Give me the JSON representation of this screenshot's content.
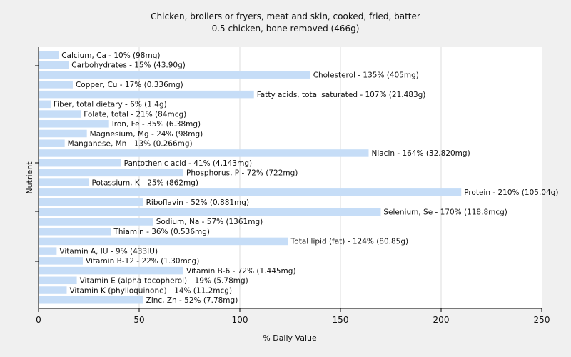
{
  "chart_data": {
    "type": "bar",
    "orientation": "horizontal",
    "title": "Chicken, broilers or fryers, meat and skin, cooked, fried, batter",
    "subtitle": "0.5 chicken, bone removed (466g)",
    "xlabel": "% Daily Value",
    "ylabel": "Nutrient",
    "xlim": [
      0,
      250
    ],
    "xticks": [
      "0",
      "50",
      "100",
      "150",
      "200",
      "250"
    ],
    "grid": true,
    "colors": {
      "bar": "#c6ddf7",
      "grid": "#dddddd",
      "background": "#f0f0f0",
      "plot_background": "#ffffff",
      "axis": "#000000"
    },
    "categories": [
      "Calcium, Ca - 10% (98mg)",
      "Carbohydrates - 15% (43.90g)",
      "Cholesterol - 135% (405mg)",
      "Copper, Cu - 17% (0.336mg)",
      "Fatty acids, total saturated - 107% (21.483g)",
      "Fiber, total dietary - 6% (1.4g)",
      "Folate, total - 21% (84mcg)",
      "Iron, Fe - 35% (6.38mg)",
      "Magnesium, Mg - 24% (98mg)",
      "Manganese, Mn - 13% (0.266mg)",
      "Niacin - 164% (32.820mg)",
      "Pantothenic acid - 41% (4.143mg)",
      "Phosphorus, P - 72% (722mg)",
      "Potassium, K - 25% (862mg)",
      "Protein - 210% (105.04g)",
      "Riboflavin - 52% (0.881mg)",
      "Selenium, Se - 170% (118.8mcg)",
      "Sodium, Na - 57% (1361mg)",
      "Thiamin - 36% (0.536mg)",
      "Total lipid (fat) - 124% (80.85g)",
      "Vitamin A, IU - 9% (433IU)",
      "Vitamin B-12 - 22% (1.30mcg)",
      "Vitamin B-6 - 72% (1.445mg)",
      "Vitamin E (alpha-tocopherol) - 19% (5.78mg)",
      "Vitamin K (phylloquinone) - 14% (11.2mcg)",
      "Zinc, Zn - 52% (7.78mg)"
    ],
    "values": [
      10,
      15,
      135,
      17,
      107,
      6,
      21,
      35,
      24,
      13,
      164,
      41,
      72,
      25,
      210,
      52,
      170,
      57,
      36,
      124,
      9,
      22,
      72,
      19,
      14,
      52
    ]
  }
}
